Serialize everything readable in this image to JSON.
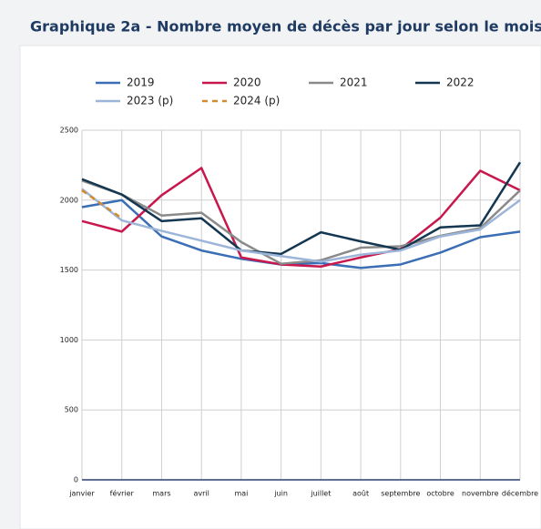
{
  "chart_data": {
    "type": "line",
    "title": "Graphique 2a - Nombre moyen de décès par jour selon le mois",
    "categories": [
      "janvier",
      "février",
      "mars",
      "avril",
      "mai",
      "juin",
      "juillet",
      "août",
      "septembre",
      "octobre",
      "novembre",
      "décembre"
    ],
    "series": [
      {
        "name": "2019",
        "color": "#3a6eb5",
        "values": [
          1950,
          2000,
          1740,
          1640,
          1580,
          1540,
          1550,
          1515,
          1540,
          1625,
          1735,
          1775
        ]
      },
      {
        "name": "2020",
        "color": "#c8174d",
        "values": [
          1850,
          1775,
          2035,
          2230,
          1590,
          1540,
          1525,
          1590,
          1650,
          1875,
          2210,
          2070
        ]
      },
      {
        "name": "2021",
        "color": "#8a8a8a",
        "values": [
          2140,
          2040,
          1890,
          1910,
          1700,
          1545,
          1570,
          1660,
          1670,
          1745,
          1800,
          2070
        ]
      },
      {
        "name": "2022",
        "color": "#133651",
        "values": [
          2150,
          2040,
          1850,
          1870,
          1640,
          1615,
          1770,
          1705,
          1645,
          1805,
          1820,
          2270
        ]
      },
      {
        "name": "2023 (p)",
        "color": "#9cb5d8",
        "values": [
          2080,
          1855,
          1780,
          1710,
          1640,
          1600,
          1560,
          1610,
          1640,
          1740,
          1790,
          2000
        ]
      },
      {
        "name": "2024 (p)",
        "color": "#d4892a",
        "dashed": true,
        "values": [
          2070,
          1870,
          null,
          null,
          null,
          null,
          null,
          null,
          null,
          null,
          null,
          null
        ]
      }
    ],
    "ylim": [
      0,
      2500
    ],
    "yticks": [
      0,
      500,
      1000,
      1500,
      2000,
      2500
    ],
    "grid": true
  }
}
